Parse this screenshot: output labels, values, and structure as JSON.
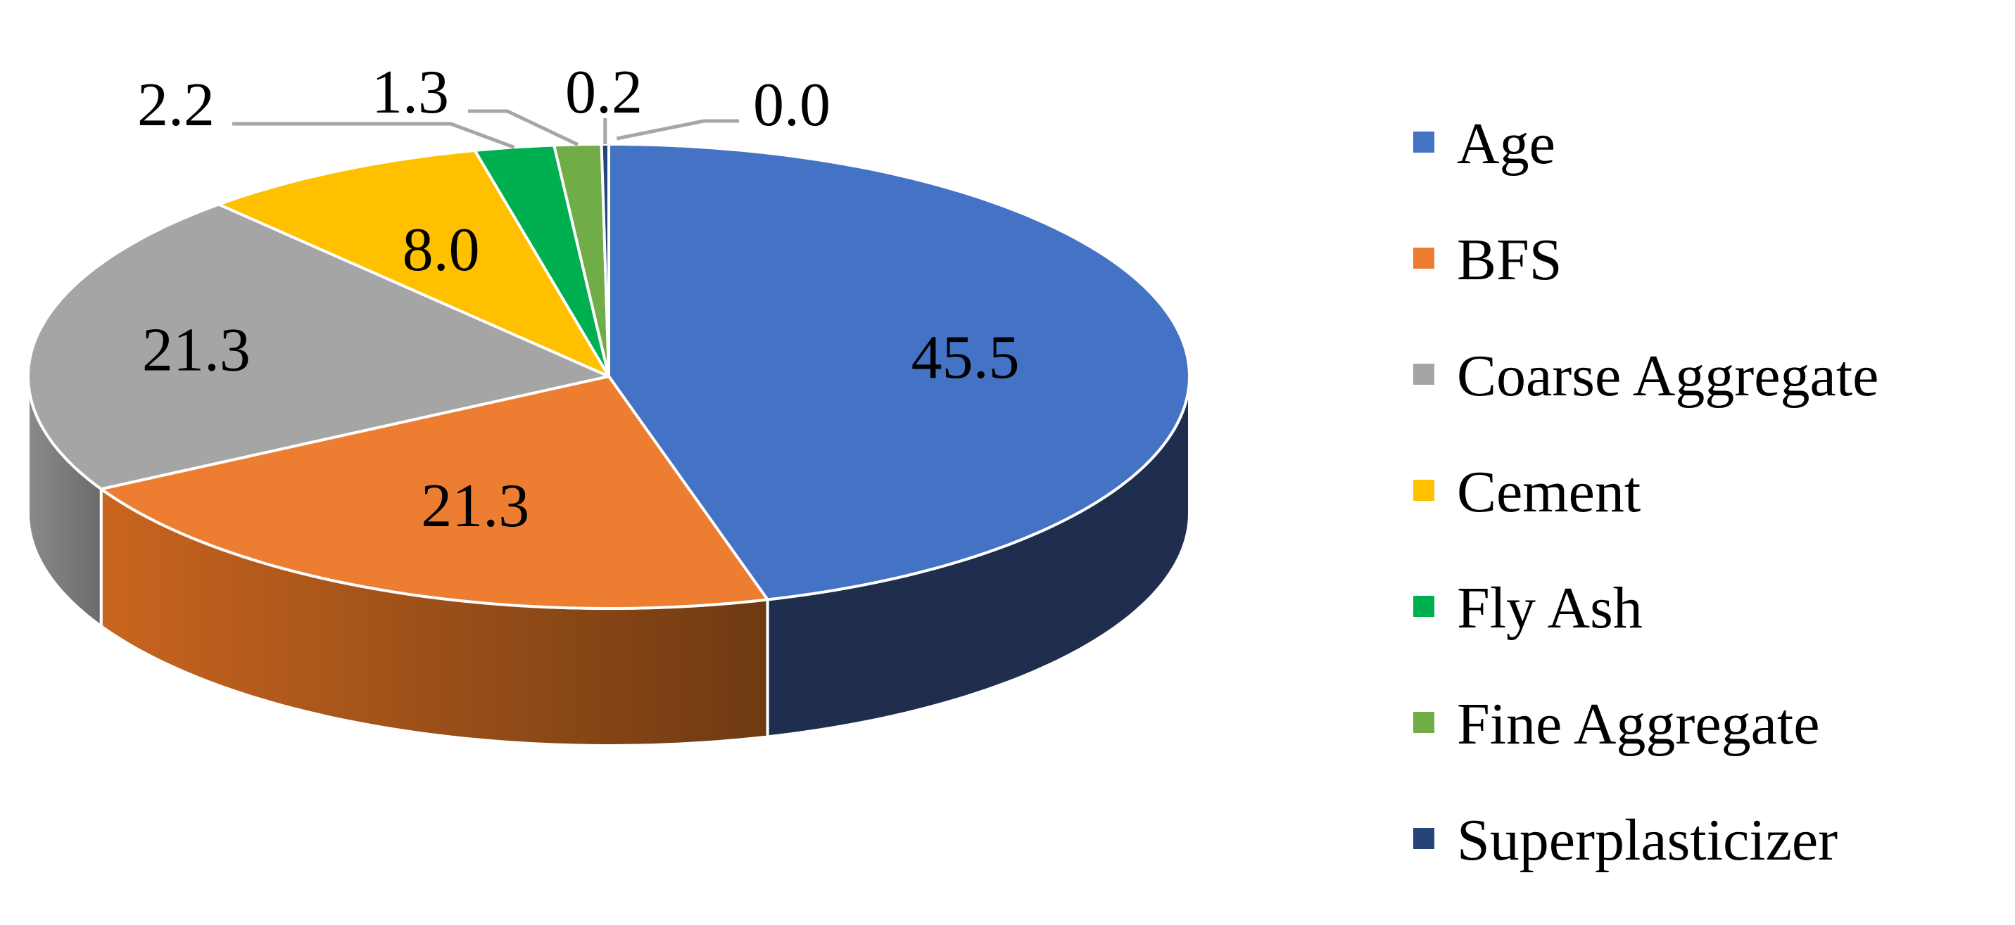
{
  "chart_data": {
    "type": "pie",
    "style": "3d",
    "title": "",
    "categories": [
      "Age",
      "BFS",
      "Coarse Aggregate",
      "Cement",
      "Fly Ash",
      "Fine Aggregate",
      "Superplasticizer"
    ],
    "values": [
      45.5,
      21.3,
      21.3,
      8.0,
      2.2,
      1.3,
      0.2
    ],
    "labels": [
      "45.5",
      "21.3",
      "21.3",
      "8.0",
      "2.2",
      "1.3",
      "0.2"
    ],
    "extra_label": "0.0",
    "colors": [
      "#4472C4",
      "#ED7D31",
      "#A5A5A5",
      "#FFC000",
      "#00B050",
      "#70AD47",
      "#264478"
    ],
    "side_colors": [
      "#1F2D4F",
      "#8E4A1C",
      "#6B6B6B",
      "#A67C00",
      "#006B30",
      "#44692B",
      "#17294A"
    ],
    "legend_position": "right"
  }
}
